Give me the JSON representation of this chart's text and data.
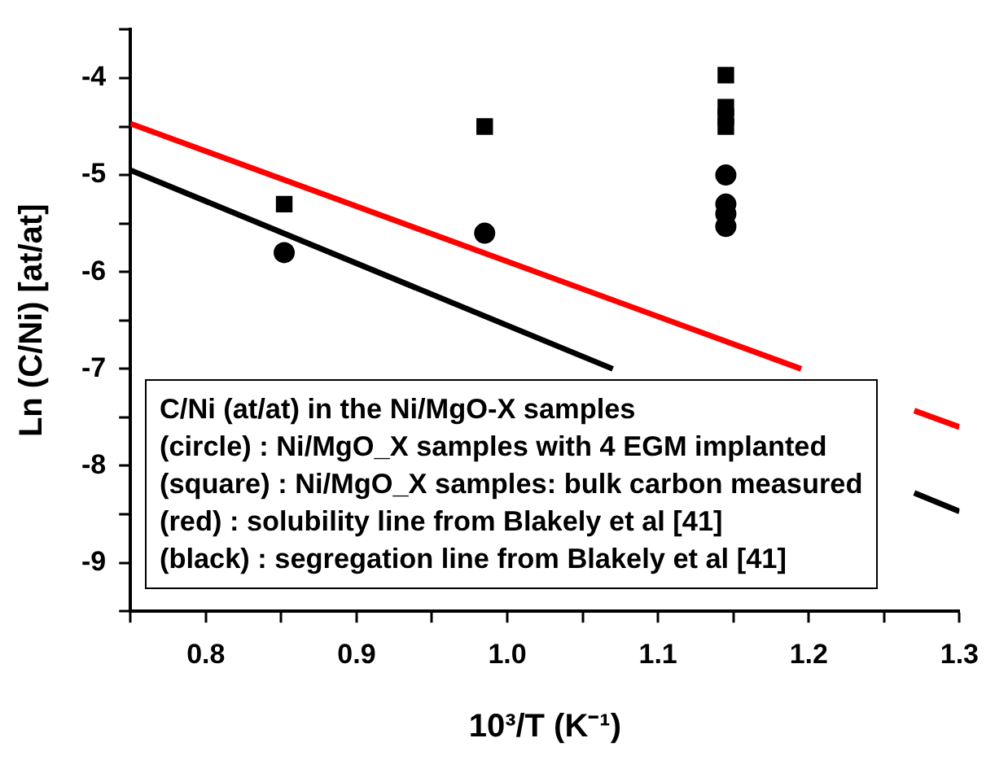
{
  "chart_data": {
    "type": "scatter",
    "xlabel": "10³/T (K⁻¹)",
    "ylabel": "Ln (C/Ni) [at/at]",
    "xlim": [
      0.75,
      1.3
    ],
    "ylim": [
      -9.5,
      -3.5
    ],
    "xticks": [
      {
        "value": 0.75,
        "label": null
      },
      {
        "value": 0.8,
        "label": "0.8"
      },
      {
        "value": 0.85,
        "label": null
      },
      {
        "value": 0.9,
        "label": "0.9"
      },
      {
        "value": 0.95,
        "label": null
      },
      {
        "value": 1.0,
        "label": "1.0"
      },
      {
        "value": 1.05,
        "label": null
      },
      {
        "value": 1.1,
        "label": "1.1"
      },
      {
        "value": 1.15,
        "label": null
      },
      {
        "value": 1.2,
        "label": "1.2"
      },
      {
        "value": 1.25,
        "label": null
      },
      {
        "value": 1.3,
        "label": "1.3"
      }
    ],
    "yticks": [
      {
        "value": -9.5,
        "label": null
      },
      -9,
      {
        "value": -8.5,
        "label": null
      },
      -8,
      {
        "value": -7.5,
        "label": null
      },
      -7,
      {
        "value": -6.5,
        "label": null
      },
      -6,
      {
        "value": -5.5,
        "label": null
      },
      -5,
      {
        "value": -4.5,
        "label": null
      },
      -4,
      {
        "value": -3.5,
        "label": null
      }
    ],
    "series": [
      {
        "type": "scatter",
        "marker": "circle",
        "color": "#000000",
        "x": [
          0.852,
          0.985,
          1.145,
          1.145,
          1.145,
          1.145
        ],
        "values": [
          -5.8,
          -5.6,
          -5.0,
          -5.3,
          -5.4,
          -5.53
        ]
      },
      {
        "type": "scatter",
        "marker": "square",
        "color": "#000000",
        "x": [
          0.852,
          0.985,
          1.145,
          1.145,
          1.145,
          1.145
        ],
        "values": [
          -5.3,
          -4.5,
          -3.97,
          -4.3,
          -4.4,
          -4.5
        ]
      },
      {
        "type": "line",
        "marker": "none",
        "color": "#ff0000",
        "x": [
          0.75,
          1.195,
          1.23,
          1.27,
          1.3
        ],
        "values": [
          -4.47,
          -7.0,
          null,
          -7.43,
          -7.6
        ]
      },
      {
        "type": "line",
        "marker": "none",
        "color": "#000000",
        "x": [
          0.75,
          1.07,
          1.17,
          1.27,
          1.3
        ],
        "values": [
          -4.95,
          -7.0,
          null,
          -8.28,
          -8.47
        ]
      }
    ],
    "annotations": [
      "C/Ni (at/at) in the Ni/MgO-X samples",
      "(circle) : Ni/MgO_X samples with 4 EGM implanted",
      "(square) : Ni/MgO_X samples: bulk carbon measured",
      "(red) : solubility line from Blakely et al [41]",
      "(black) : segregation line from Blakely et al [41]"
    ],
    "grid": false,
    "legend": false
  }
}
